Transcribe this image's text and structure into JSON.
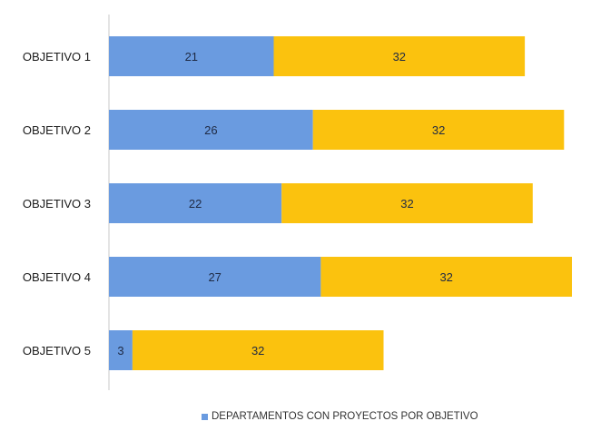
{
  "chart_data": {
    "type": "bar",
    "orientation": "horizontal",
    "stacked": true,
    "categories": [
      "OBJETIVO 1",
      "OBJETIVO 2",
      "OBJETIVO 3",
      "OBJETIVO 4",
      "OBJETIVO 5"
    ],
    "series": [
      {
        "name": "DEPARTAMENTOS CON PROYECTOS POR OBJETIVO",
        "values": [
          21,
          26,
          22,
          27,
          3
        ],
        "color": "#6a9be0"
      },
      {
        "name": "",
        "values": [
          32,
          32,
          32,
          32,
          32
        ],
        "color": "#fbc20e"
      }
    ],
    "xlim": [
      0,
      59
    ],
    "grid": false,
    "legend_position": "bottom",
    "data_labels": true
  }
}
